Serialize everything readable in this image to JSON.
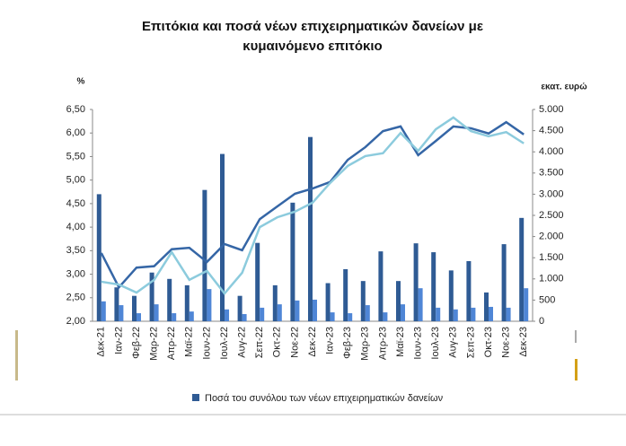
{
  "chart_data": {
    "type": "combo",
    "title": [
      "Επιτόκια και ποσά νέων επιχειρηματικών δανείων με",
      "κυμαινόμενο επιτόκιο"
    ],
    "y_label": "%",
    "y2_label": "εκατ. ευρώ",
    "categories": [
      "Δεκ-21",
      "Ιαν-22",
      "Φεβ-22",
      "Μαρ-22",
      "Απρ-22",
      "Μαϊ-22",
      "Ιουν-22",
      "Ιουλ-22",
      "Αυγ-22",
      "Σεπ-22",
      "Οκτ-22",
      "Νοε-22",
      "Δεκ-22",
      "Ιαν-23",
      "Φεβ-23",
      "Μαρ-23",
      "Απρ-23",
      "Μαϊ-23",
      "Ιουν-23",
      "Ιουλ-23",
      "Αυγ-23",
      "Σεπ-23",
      "Οκτ-23",
      "Νοε-23",
      "Δεκ-23"
    ],
    "series": [
      {
        "name": "Ποσά του συνόλου των νέων επιχειρηματικών δανείων",
        "type": "bar",
        "axis": "y2",
        "color": "#2f5b94",
        "values": [
          3000,
          800,
          600,
          1150,
          1000,
          850,
          3100,
          3950,
          600,
          1850,
          850,
          2800,
          4350,
          900,
          1230,
          950,
          1650,
          950,
          1840,
          1630,
          1200,
          1420,
          680,
          1820,
          2440
        ]
      },
      {
        "type": "bar",
        "axis": "y2",
        "color": "#4f86d6",
        "values": [
          470,
          380,
          190,
          400,
          190,
          230,
          760,
          280,
          170,
          320,
          400,
          490,
          510,
          210,
          190,
          380,
          210,
          400,
          780,
          320,
          280,
          320,
          340,
          320,
          780
        ]
      },
      {
        "type": "line",
        "color": "#3566a6",
        "values": [
          3.45,
          2.72,
          3.14,
          3.17,
          3.53,
          3.56,
          3.26,
          3.64,
          3.51,
          4.17,
          4.44,
          4.71,
          4.82,
          4.96,
          5.43,
          5.7,
          6.04,
          6.14,
          5.53,
          5.83,
          6.14,
          6.1,
          5.99,
          6.23,
          5.97
        ]
      },
      {
        "type": "line",
        "color": "#8ccbdd",
        "values": [
          2.84,
          2.78,
          2.61,
          2.88,
          3.47,
          2.88,
          3.07,
          2.59,
          3.03,
          4.0,
          4.21,
          4.33,
          4.52,
          4.94,
          5.3,
          5.51,
          5.57,
          6.0,
          5.62,
          6.08,
          6.33,
          6.04,
          5.93,
          6.02,
          5.78
        ]
      }
    ],
    "ylim": [
      2,
      6.5
    ],
    "yticks": [
      {
        "value": 2,
        "label": "2,00"
      },
      {
        "value": 2.5,
        "label": "2,50"
      },
      {
        "value": 3,
        "label": "3,00"
      },
      {
        "value": 3.5,
        "label": "3,50"
      },
      {
        "value": 4,
        "label": "4,00"
      },
      {
        "value": 4.5,
        "label": "4,50"
      },
      {
        "value": 5,
        "label": "5,00"
      },
      {
        "value": 5.5,
        "label": "5,50"
      },
      {
        "value": 6,
        "label": "6,00"
      },
      {
        "value": 6.5,
        "label": "6,50"
      }
    ],
    "y2lim": [
      0,
      5000
    ],
    "y2ticks": [
      0,
      500,
      {
        "value": 1000,
        "label": "1.000"
      },
      {
        "value": 1500,
        "label": "1.500"
      },
      {
        "value": 2000,
        "label": "2.000"
      },
      {
        "value": 2500,
        "label": "2.500"
      },
      {
        "value": 3000,
        "label": "3.000"
      },
      {
        "value": 3500,
        "label": "3.500"
      },
      {
        "value": 4000,
        "label": "4.000"
      },
      {
        "value": 4500,
        "label": "4.500"
      },
      {
        "value": 5000,
        "label": "5.000"
      }
    ],
    "legend": "bottom"
  }
}
